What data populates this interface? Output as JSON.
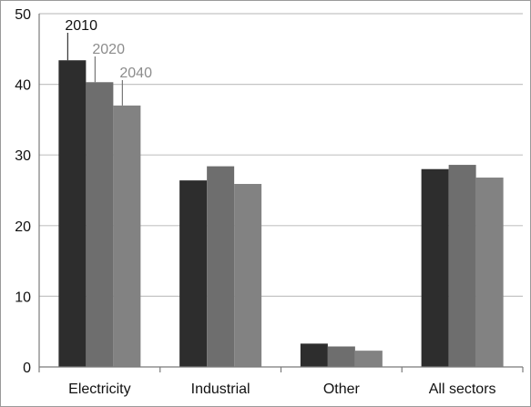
{
  "chart_data": {
    "type": "bar",
    "title": "",
    "xlabel": "",
    "ylabel": "",
    "categories": [
      "Electricity",
      "Industrial",
      "Other",
      "All sectors"
    ],
    "ylim": [
      0,
      50
    ],
    "yticks": [
      0,
      10,
      20,
      30,
      40,
      50
    ],
    "grid": true,
    "series": [
      {
        "name": "2010",
        "values": [
          43.4,
          26.4,
          3.3,
          28.0
        ],
        "color": "#2d2d2d",
        "label_color": "#111111"
      },
      {
        "name": "2020",
        "values": [
          40.3,
          28.4,
          2.9,
          28.6
        ],
        "color": "#6e6e6e",
        "label_color": "#8c8c8c"
      },
      {
        "name": "2040",
        "values": [
          37.0,
          25.9,
          2.3,
          26.8
        ],
        "color": "#828282",
        "label_color": "#8c8c8c"
      }
    ]
  }
}
